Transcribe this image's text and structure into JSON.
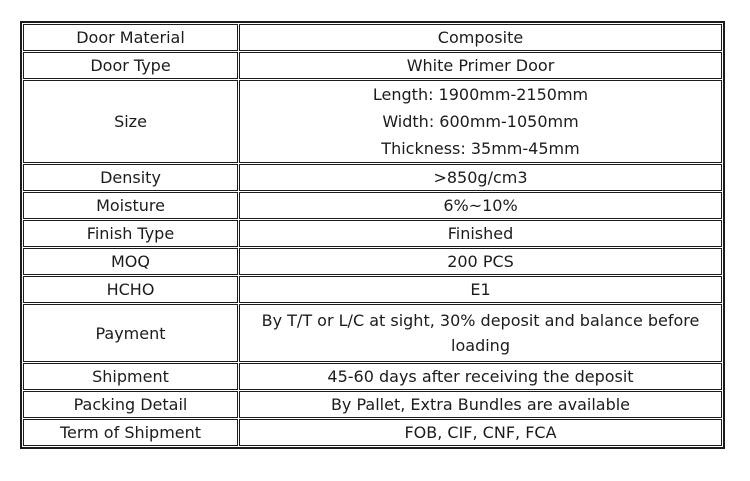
{
  "colors": {
    "border": "#1c1c1c",
    "text": "#1c1c1c",
    "background": "#ffffff"
  },
  "table": {
    "rows": [
      {
        "label": "Door Material",
        "value": "Composite"
      },
      {
        "label": "Door Type",
        "value": "White Primer Door"
      },
      {
        "label": "Size",
        "value_lines": [
          "Length: 1900mm-2150mm",
          "Width: 600mm-1050mm",
          "Thickness: 35mm-45mm"
        ]
      },
      {
        "label": "Density",
        "value": ">850g/cm3"
      },
      {
        "label": "Moisture",
        "value": "6%~10%"
      },
      {
        "label": "Finish Type",
        "value": "Finished"
      },
      {
        "label": "MOQ",
        "value": "200 PCS"
      },
      {
        "label": "HCHO",
        "value": "E1"
      },
      {
        "label": "Payment",
        "value": "By T/T or L/C at sight, 30% deposit and balance before loading"
      },
      {
        "label": "Shipment",
        "value": "45-60 days after receiving the deposit"
      },
      {
        "label": "Packing Detail",
        "value": "By Pallet, Extra Bundles are available"
      },
      {
        "label": "Term of Shipment",
        "value": "FOB, CIF, CNF, FCA"
      }
    ]
  }
}
